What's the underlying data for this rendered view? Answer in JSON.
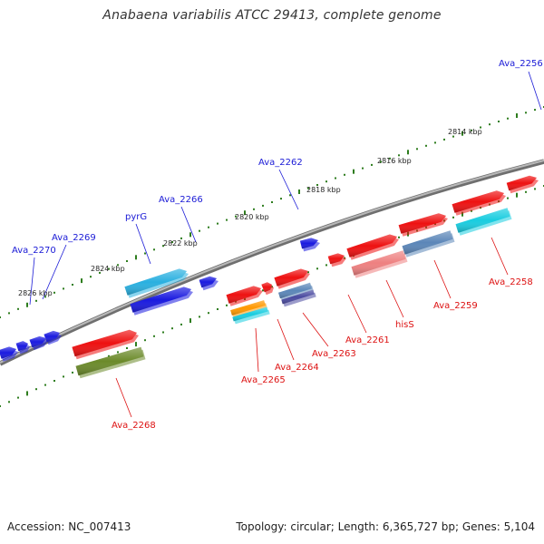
{
  "title": "Anabaena variabilis ATCC 29413, complete genome",
  "footer": {
    "accession": "Accession: NC_007413",
    "topology": "Topology: circular; Length: 6,365,727 bp; Genes: 5,104"
  },
  "colors": {
    "backbone": "#8a8a8a",
    "tick": "#2e7d1e",
    "label_top": "#1a1ad6",
    "label_bottom": "#dd1111",
    "red": "#ee1111",
    "blue": "#1a1ae0",
    "cyan": "#19cde0",
    "lightblue": "#2ab0e0",
    "pink": "#ee8080",
    "steel": "#5b86b8",
    "slate": "#4a4aa0",
    "olive": "#6b8a2a",
    "orange": "#ff9900"
  },
  "scale": {
    "unit": "kbp",
    "labels": [
      "2814 kbp",
      "2816 kbp",
      "2818 kbp",
      "2820 kbp",
      "2822 kbp",
      "2824 kbp",
      "2826 kbp"
    ]
  },
  "gene_labels": {
    "top": [
      "Ava_2256",
      "Ava_2262",
      "Ava_2266",
      "pyrG",
      "Ava_2269",
      "Ava_2270"
    ],
    "bottom": [
      "Ava_2258",
      "Ava_2259",
      "hisS",
      "Ava_2261",
      "Ava_2263",
      "Ava_2264",
      "Ava_2265",
      "Ava_2268"
    ]
  }
}
